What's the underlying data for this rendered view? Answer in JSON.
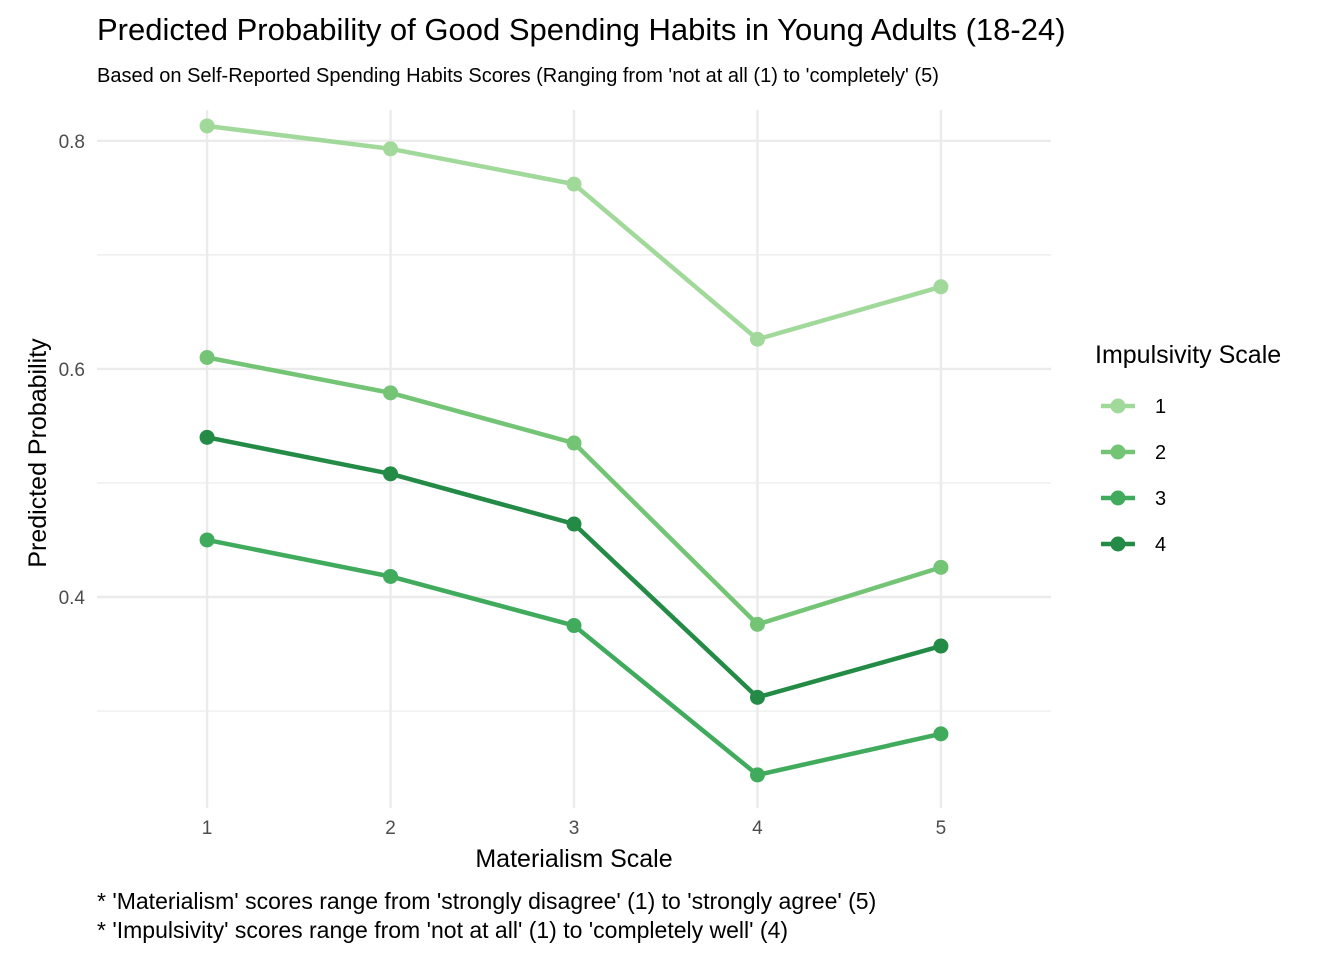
{
  "chart_data": {
    "type": "line",
    "title": "Predicted Probability of Good Spending Habits in Young Adults (18-24)",
    "subtitle": "Based on Self-Reported Spending Habits Scores (Ranging from 'not at all (1) to 'completely' (5)",
    "xlabel": "Materialism Scale",
    "ylabel": "Predicted Probability",
    "x": [
      1,
      2,
      3,
      4,
      5
    ],
    "x_ticks": [
      "1",
      "2",
      "3",
      "4",
      "5"
    ],
    "y_ticks": [
      0.4,
      0.6,
      0.8
    ],
    "y_tick_labels": [
      "0.4",
      "0.6",
      "0.8"
    ],
    "xlim": [
      0.4,
      5.6
    ],
    "ylim": [
      0.215,
      0.827
    ],
    "grid": true,
    "legend": {
      "title": "Impulsivity Scale",
      "placement": "right"
    },
    "series": [
      {
        "name": "1",
        "color": "#a1d99b",
        "values": [
          0.813,
          0.793,
          0.762,
          0.626,
          0.672
        ]
      },
      {
        "name": "2",
        "color": "#74c476",
        "values": [
          0.61,
          0.579,
          0.535,
          0.376,
          0.426
        ]
      },
      {
        "name": "3",
        "color": "#41ab5d",
        "values": [
          0.45,
          0.418,
          0.375,
          0.244,
          0.28
        ]
      },
      {
        "name": "4",
        "color": "#238b45",
        "values": [
          0.54,
          0.508,
          0.464,
          0.312,
          0.357
        ]
      }
    ],
    "captions": [
      "* 'Materialism' scores range from 'strongly disagree' (1) to 'strongly agree' (5)",
      "* 'Impulsivity' scores range from 'not at all' (1) to 'completely well' (4)"
    ]
  }
}
